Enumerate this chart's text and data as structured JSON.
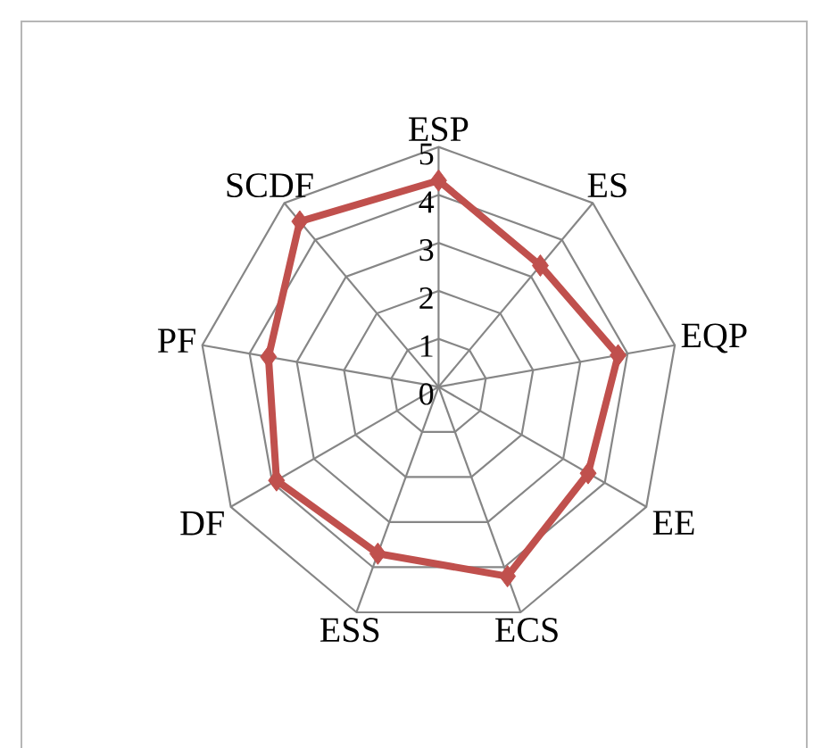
{
  "chart_data": {
    "type": "radar",
    "categories": [
      "ESP",
      "ES",
      "EQP",
      "EE",
      "ECS",
      "ESS",
      "DF",
      "PF",
      "SCDF"
    ],
    "series": [
      {
        "color": "#c0504d",
        "values": [
          4.3,
          3.3,
          3.8,
          3.6,
          4.2,
          3.7,
          3.9,
          3.6,
          4.5
        ]
      }
    ],
    "ylim": [
      0,
      5
    ],
    "yticks": [
      0,
      1,
      2,
      3,
      4,
      5
    ],
    "grid": true,
    "marker": "diamond"
  }
}
